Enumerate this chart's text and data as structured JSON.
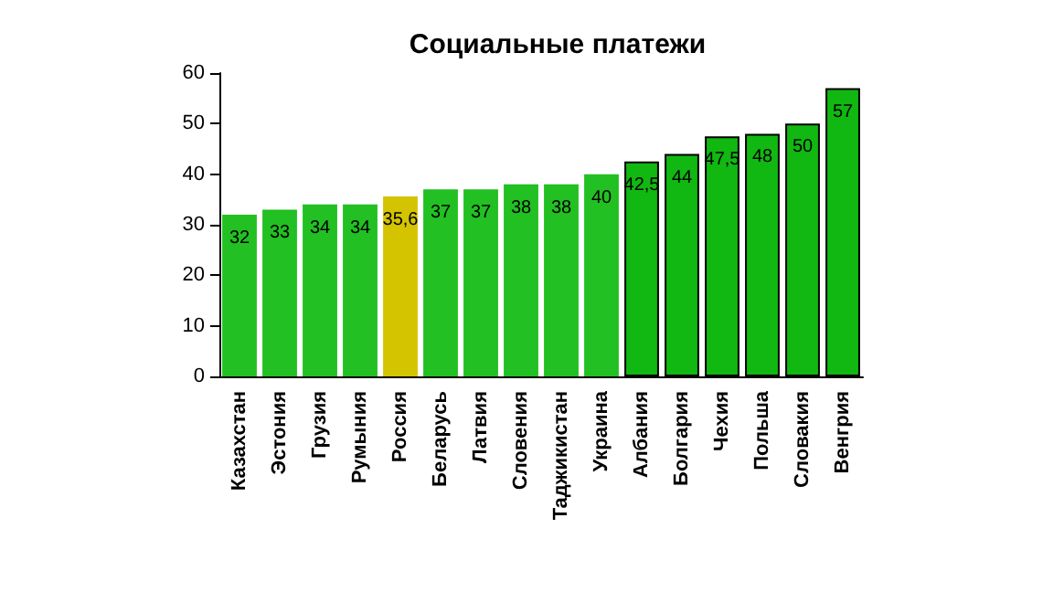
{
  "chart_data": {
    "type": "bar",
    "title": "Социальные платежи",
    "categories": [
      "Казахстан",
      "Эстония",
      "Грузия",
      "Румыния",
      "Россия",
      "Беларусь",
      "Латвия",
      "Словения",
      "Таджикистан",
      "Украина",
      "Албания",
      "Болгария",
      "Чехия",
      "Польша",
      "Словакия",
      "Венгрия"
    ],
    "values": [
      32,
      33,
      34,
      34,
      35.6,
      37,
      37,
      38,
      38,
      40,
      42.5,
      44,
      47.5,
      48,
      50,
      57
    ],
    "value_labels": [
      "32",
      "33",
      "34",
      "34",
      "35,6",
      "37",
      "37",
      "38",
      "38",
      "40",
      "42,5",
      "44",
      "47,5",
      "48",
      "50",
      "57"
    ],
    "colors": [
      "#22c022",
      "#22c022",
      "#22c022",
      "#22c022",
      "#d4c400",
      "#22c022",
      "#22c022",
      "#22c022",
      "#22c022",
      "#22c022",
      "#11b811",
      "#11b811",
      "#11b811",
      "#11b811",
      "#11b811",
      "#11b811"
    ],
    "ylim": [
      0,
      60
    ],
    "yticks": [
      0,
      10,
      20,
      30,
      40,
      50,
      60
    ],
    "grid": false
  }
}
